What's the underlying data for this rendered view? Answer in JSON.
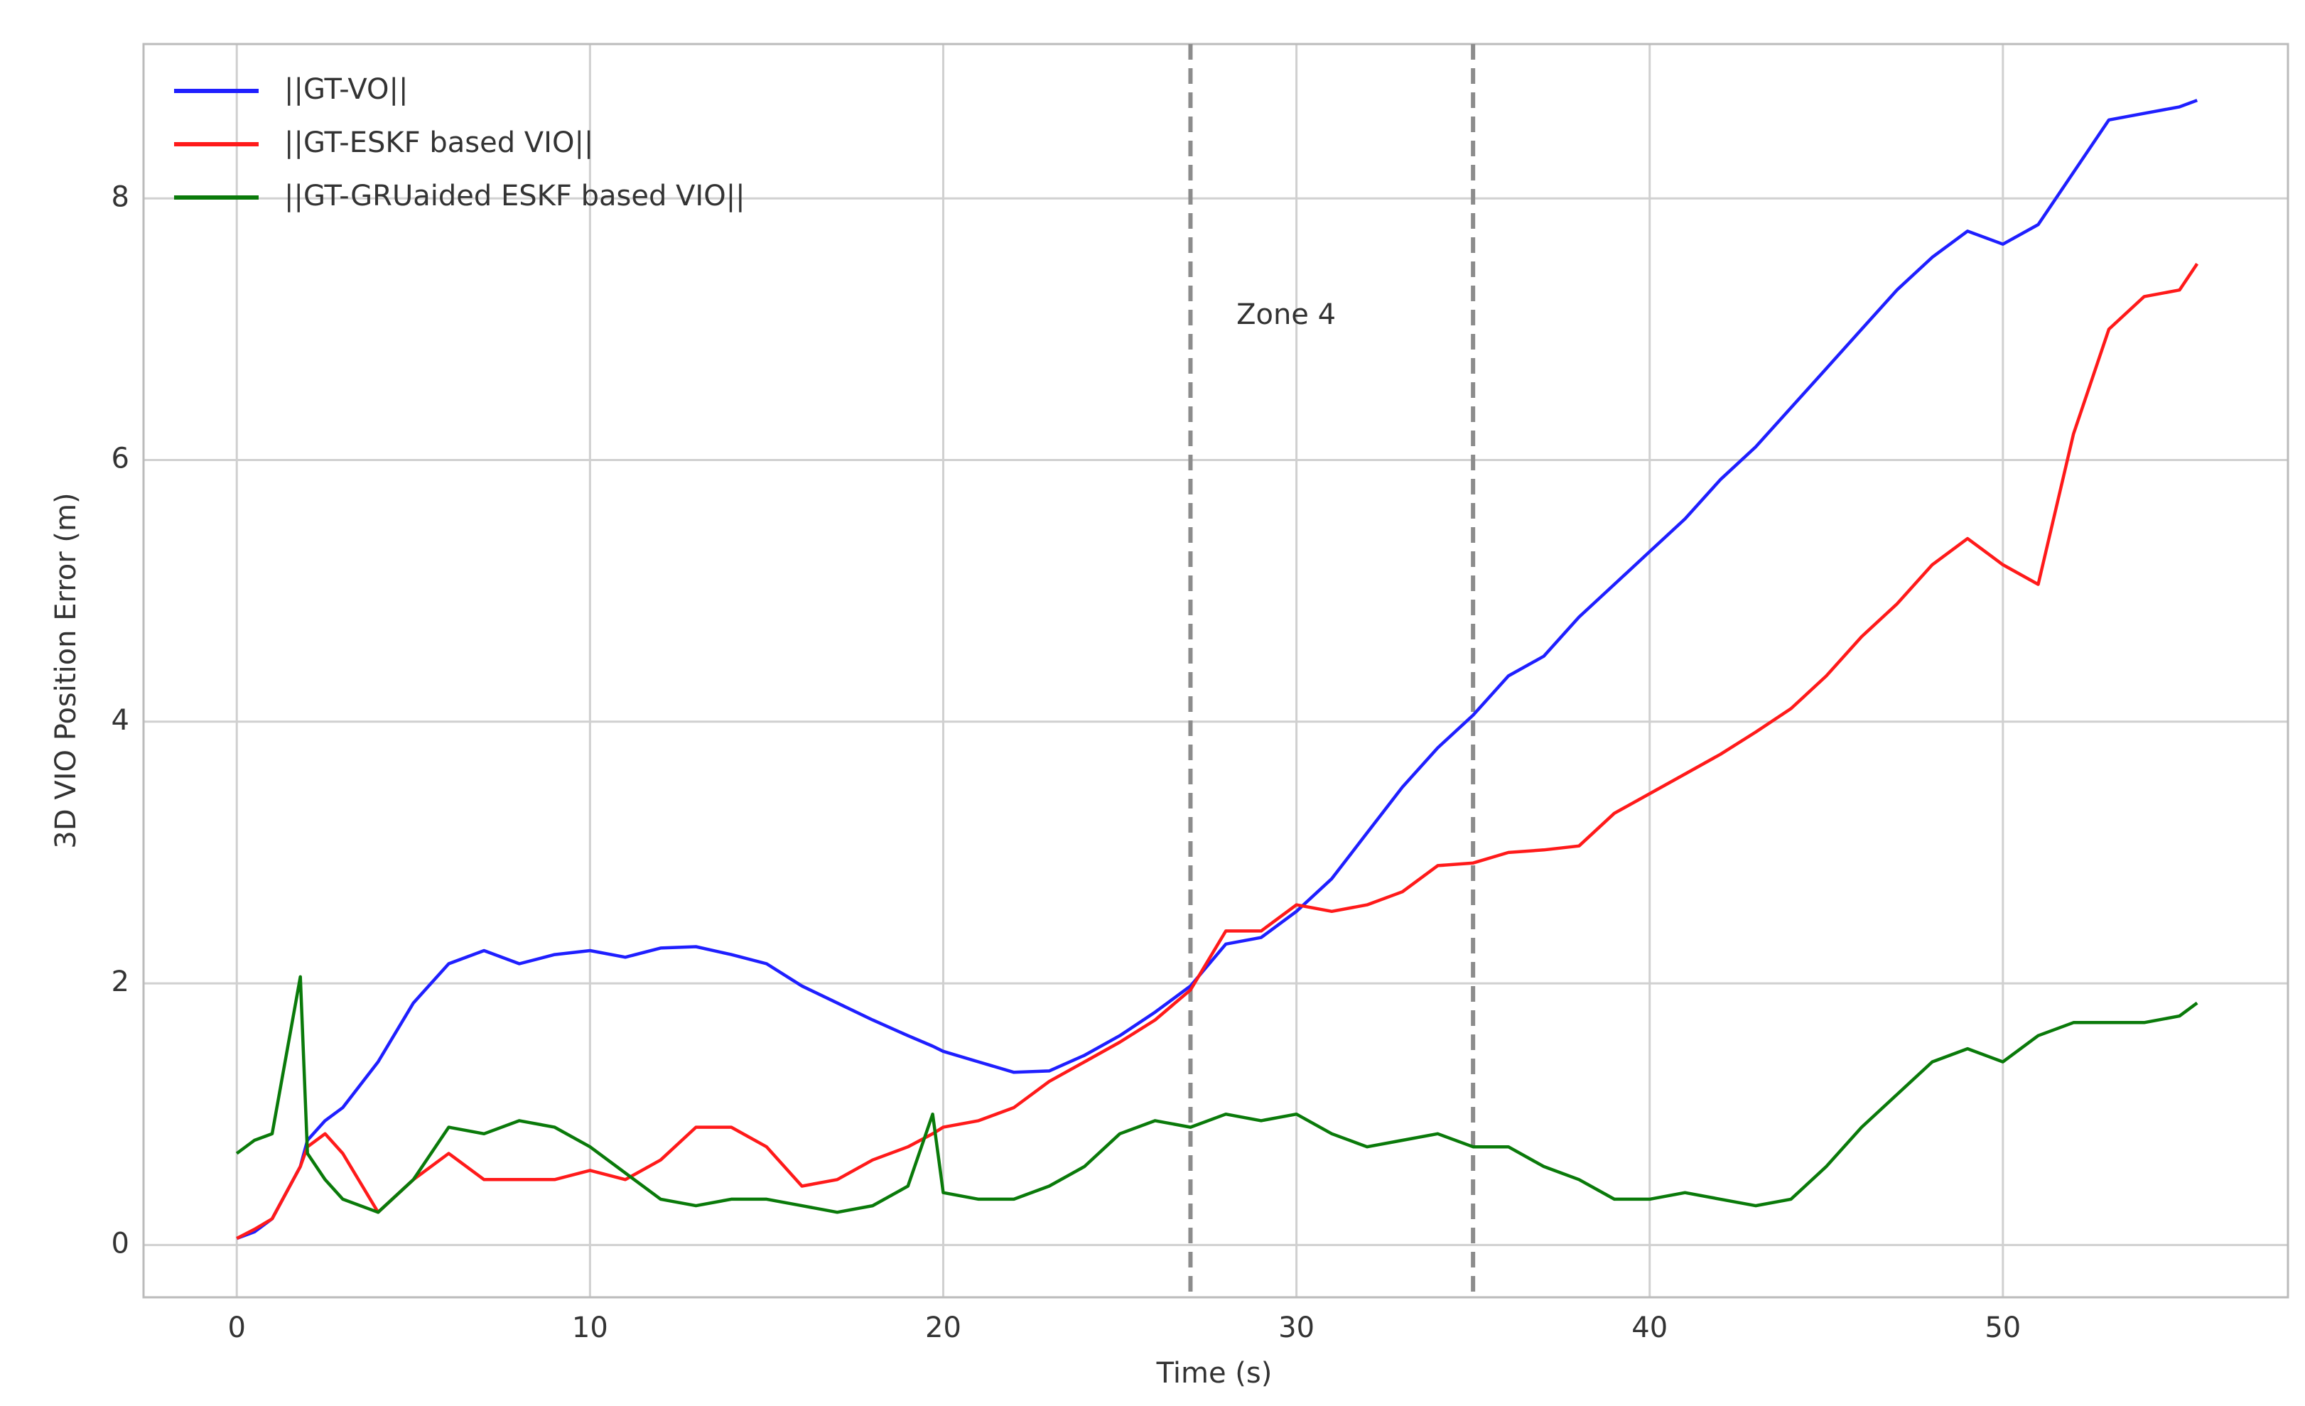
{
  "chart_data": {
    "type": "line",
    "xlabel": "Time (s)",
    "ylabel": "3D VIO Position Error (m)",
    "x": [
      0,
      0.5,
      1,
      1.8,
      2,
      2.5,
      3,
      4,
      5,
      6,
      7,
      8,
      9,
      10,
      11,
      12,
      13,
      14,
      15,
      16,
      17,
      18,
      19,
      19.7,
      20,
      21,
      22,
      23,
      24,
      25,
      26,
      27,
      28,
      29,
      30,
      31,
      32,
      33,
      34,
      35,
      36,
      37,
      38,
      39,
      40,
      41,
      42,
      43,
      44,
      45,
      46,
      47,
      48,
      49,
      50,
      51,
      52,
      53,
      54,
      55,
      55.5
    ],
    "series": [
      {
        "name": "||GT-VO||",
        "color": "#1f1fff",
        "values": [
          0.05,
          0.1,
          0.2,
          0.6,
          0.8,
          0.95,
          1.05,
          1.4,
          1.85,
          2.15,
          2.25,
          2.15,
          2.22,
          2.25,
          2.2,
          2.27,
          2.28,
          2.22,
          2.15,
          1.98,
          1.85,
          1.72,
          1.6,
          1.52,
          1.48,
          1.4,
          1.32,
          1.33,
          1.45,
          1.6,
          1.78,
          1.98,
          2.3,
          2.35,
          2.55,
          2.8,
          3.15,
          3.5,
          3.8,
          4.05,
          4.35,
          4.5,
          4.8,
          5.05,
          5.3,
          5.55,
          5.85,
          6.1,
          6.4,
          6.7,
          7.0,
          7.3,
          7.55,
          7.75,
          7.65,
          7.8,
          8.2,
          8.6,
          8.65,
          8.7,
          8.75
        ]
      },
      {
        "name": "||GT-ESKF based VIO||",
        "color": "#ff1a1a",
        "values": [
          0.05,
          0.12,
          0.2,
          0.6,
          0.75,
          0.85,
          0.7,
          0.25,
          0.5,
          0.7,
          0.5,
          0.5,
          0.5,
          0.57,
          0.5,
          0.65,
          0.9,
          0.9,
          0.75,
          0.45,
          0.5,
          0.65,
          0.75,
          0.85,
          0.9,
          0.95,
          1.05,
          1.25,
          1.4,
          1.55,
          1.72,
          1.95,
          2.4,
          2.4,
          2.6,
          2.55,
          2.6,
          2.7,
          2.9,
          2.92,
          3.0,
          3.02,
          3.05,
          3.3,
          3.45,
          3.6,
          3.75,
          3.92,
          4.1,
          4.35,
          4.65,
          4.9,
          5.2,
          5.4,
          5.2,
          5.05,
          6.2,
          7.0,
          7.25,
          7.3,
          7.5
        ]
      },
      {
        "name": "||GT-GRUaided ESKF based VIO||",
        "color": "#0a7a0a",
        "values": [
          0.7,
          0.8,
          0.85,
          2.05,
          0.7,
          0.5,
          0.35,
          0.25,
          0.5,
          0.9,
          0.85,
          0.95,
          0.9,
          0.75,
          0.55,
          0.35,
          0.3,
          0.35,
          0.35,
          0.3,
          0.25,
          0.3,
          0.45,
          1.0,
          0.4,
          0.35,
          0.35,
          0.45,
          0.6,
          0.85,
          0.95,
          0.9,
          1.0,
          0.95,
          1.0,
          0.85,
          0.75,
          0.8,
          0.85,
          0.75,
          0.75,
          0.6,
          0.5,
          0.35,
          0.35,
          0.4,
          0.35,
          0.3,
          0.35,
          0.6,
          0.9,
          1.15,
          1.4,
          1.5,
          1.4,
          1.6,
          1.7,
          1.7,
          1.7,
          1.75,
          1.85
        ]
      }
    ],
    "vlines": [
      27,
      35
    ],
    "vline_color": "#8c8c8c",
    "annotations": [
      {
        "text": "Zone 4",
        "x": 28.3,
        "y": 7.1
      }
    ],
    "xlim": [
      -2.64,
      58.07
    ],
    "ylim": [
      -0.4,
      9.18
    ],
    "xticks": [
      0,
      10,
      20,
      30,
      40,
      50
    ],
    "yticks": [
      0,
      2,
      4,
      6,
      8
    ],
    "grid": true,
    "legend": "upper left"
  }
}
